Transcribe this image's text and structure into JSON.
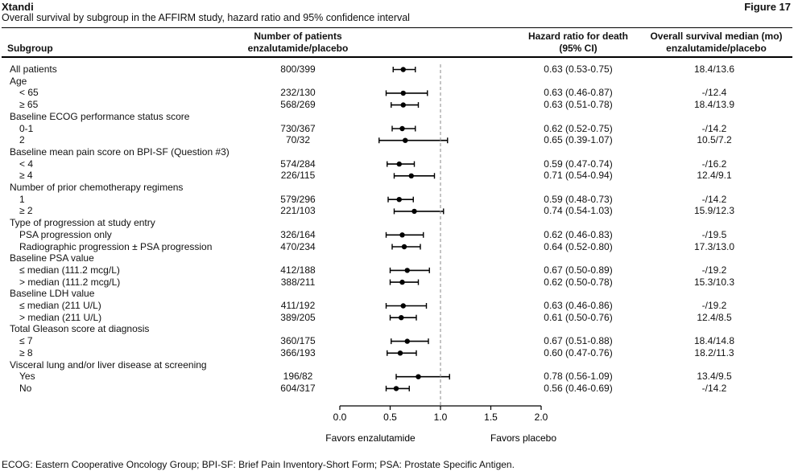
{
  "header": {
    "brand": "Xtandi",
    "figure_label": "Figure 17",
    "subtitle": "Overall survival by subgroup in the AFFIRM study, hazard ratio and 95% confidence interval",
    "col_subgroup": "Subgroup",
    "col_patients_line1": "Number of patients",
    "col_patients_line2": "enzalutamide/placebo",
    "col_hr_line1": "Hazard ratio for death",
    "col_hr_line2": "(95% CI)",
    "col_median_line1": "Overall survival median (mo)",
    "col_median_line2": "enzalutamide/placebo"
  },
  "chart_data": {
    "type": "forest",
    "x_axis": {
      "ticks": [
        "0.0",
        "0.5",
        "1.0",
        "1.5",
        "2.0"
      ],
      "range": [
        0,
        2.0
      ],
      "reference_line": 1.0
    },
    "favors_left": "Favors enzalutamide",
    "favors_right": "Favors placebo",
    "rows": [
      {
        "label": "All patients",
        "indent": false,
        "patients": "800/399",
        "hr_text": "0.63 (0.53-0.75)",
        "median": "18.4/13.6",
        "hr": 0.63,
        "lo": 0.53,
        "hi": 0.75
      },
      {
        "label": "Age",
        "indent": false,
        "heading": true
      },
      {
        "label": "< 65",
        "indent": true,
        "patients": "232/130",
        "hr_text": "0.63 (0.46-0.87)",
        "median": "-/12.4",
        "hr": 0.63,
        "lo": 0.46,
        "hi": 0.87
      },
      {
        "label": "≥ 65",
        "indent": true,
        "patients": "568/269",
        "hr_text": "0.63 (0.51-0.78)",
        "median": "18.4/13.9",
        "hr": 0.63,
        "lo": 0.51,
        "hi": 0.78
      },
      {
        "label": "Baseline ECOG performance status score",
        "indent": false,
        "heading": true
      },
      {
        "label": "0-1",
        "indent": true,
        "patients": "730/367",
        "hr_text": "0.62 (0.52-0.75)",
        "median": "-/14.2",
        "hr": 0.62,
        "lo": 0.52,
        "hi": 0.75
      },
      {
        "label": "2",
        "indent": true,
        "patients": "70/32",
        "hr_text": "0.65 (0.39-1.07)",
        "median": "10.5/7.2",
        "hr": 0.65,
        "lo": 0.39,
        "hi": 1.07
      },
      {
        "label": "Baseline mean pain score on BPI-SF (Question #3)",
        "indent": false,
        "heading": true
      },
      {
        "label": "< 4",
        "indent": true,
        "patients": "574/284",
        "hr_text": "0.59 (0.47-0.74)",
        "median": "-/16.2",
        "hr": 0.59,
        "lo": 0.47,
        "hi": 0.74
      },
      {
        "label": "≥ 4",
        "indent": true,
        "patients": "226/115",
        "hr_text": "0.71 (0.54-0.94)",
        "median": "12.4/9.1",
        "hr": 0.71,
        "lo": 0.54,
        "hi": 0.94
      },
      {
        "label": "Number of prior chemotherapy regimens",
        "indent": false,
        "heading": true
      },
      {
        "label": "1",
        "indent": true,
        "patients": "579/296",
        "hr_text": "0.59 (0.48-0.73)",
        "median": "-/14.2",
        "hr": 0.59,
        "lo": 0.48,
        "hi": 0.73
      },
      {
        "label": "≥ 2",
        "indent": true,
        "patients": "221/103",
        "hr_text": "0.74 (0.54-1.03)",
        "median": "15.9/12.3",
        "hr": 0.74,
        "lo": 0.54,
        "hi": 1.03
      },
      {
        "label": "Type of progression at study entry",
        "indent": false,
        "heading": true
      },
      {
        "label": "PSA progression only",
        "indent": true,
        "patients": "326/164",
        "hr_text": "0.62 (0.46-0.83)",
        "median": "-/19.5",
        "hr": 0.62,
        "lo": 0.46,
        "hi": 0.83
      },
      {
        "label": "Radiographic progression ± PSA progression",
        "indent": true,
        "patients": "470/234",
        "hr_text": "0.64 (0.52-0.80)",
        "median": "17.3/13.0",
        "hr": 0.64,
        "lo": 0.52,
        "hi": 0.8
      },
      {
        "label": "Baseline PSA value",
        "indent": false,
        "heading": true
      },
      {
        "label": "≤ median (111.2 mcg/L)",
        "indent": true,
        "patients": "412/188",
        "hr_text": "0.67 (0.50-0.89)",
        "median": "-/19.2",
        "hr": 0.67,
        "lo": 0.5,
        "hi": 0.89
      },
      {
        "label": "> median (111.2 mcg/L)",
        "indent": true,
        "patients": "388/211",
        "hr_text": "0.62 (0.50-0.78)",
        "median": "15.3/10.3",
        "hr": 0.62,
        "lo": 0.5,
        "hi": 0.78
      },
      {
        "label": "Baseline LDH value",
        "indent": false,
        "heading": true
      },
      {
        "label": "≤ median (211 U/L)",
        "indent": true,
        "patients": "411/192",
        "hr_text": "0.63 (0.46-0.86)",
        "median": "-/19.2",
        "hr": 0.63,
        "lo": 0.46,
        "hi": 0.86
      },
      {
        "label": "> median (211 U/L)",
        "indent": true,
        "patients": "389/205",
        "hr_text": "0.61 (0.50-0.76)",
        "median": "12.4/8.5",
        "hr": 0.61,
        "lo": 0.5,
        "hi": 0.76
      },
      {
        "label": "Total Gleason score at diagnosis",
        "indent": false,
        "heading": true
      },
      {
        "label": "≤ 7",
        "indent": true,
        "patients": "360/175",
        "hr_text": "0.67 (0.51-0.88)",
        "median": "18.4/14.8",
        "hr": 0.67,
        "lo": 0.51,
        "hi": 0.88
      },
      {
        "label": "≥ 8",
        "indent": true,
        "patients": "366/193",
        "hr_text": "0.60 (0.47-0.76)",
        "median": "18.2/11.3",
        "hr": 0.6,
        "lo": 0.47,
        "hi": 0.76
      },
      {
        "label": "Visceral lung and/or liver disease at screening",
        "indent": false,
        "heading": true
      },
      {
        "label": "Yes",
        "indent": true,
        "patients": "196/82",
        "hr_text": "0.78 (0.56-1.09)",
        "median": "13.4/9.5",
        "hr": 0.78,
        "lo": 0.56,
        "hi": 1.09
      },
      {
        "label": "No",
        "indent": true,
        "patients": "604/317",
        "hr_text": "0.56 (0.46-0.69)",
        "median": "-/14.2",
        "hr": 0.56,
        "lo": 0.46,
        "hi": 0.69
      }
    ]
  },
  "footnote": "ECOG: Eastern Cooperative Oncology Group; BPI-SF: Brief Pain Inventory-Short Form; PSA: Prostate Specific Antigen."
}
